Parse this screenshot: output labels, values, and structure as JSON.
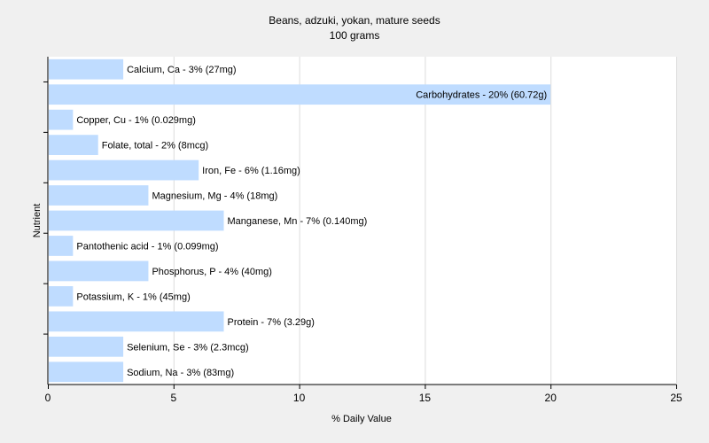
{
  "chart_data": {
    "type": "bar",
    "orientation": "horizontal",
    "title": "Beans, adzuki, yokan, mature seeds",
    "subtitle": "100 grams",
    "xlabel": "% Daily Value",
    "ylabel": "Nutrient",
    "xlim": [
      0,
      25
    ],
    "xticks": [
      0,
      5,
      10,
      15,
      20,
      25
    ],
    "grid": "vertical",
    "bar_color": "#bfdcff",
    "categories": [
      "Calcium, Ca",
      "Carbohydrates",
      "Copper, Cu",
      "Folate, total",
      "Iron, Fe",
      "Magnesium, Mg",
      "Manganese, Mn",
      "Pantothenic acid",
      "Phosphorus, P",
      "Potassium, K",
      "Protein",
      "Selenium, Se",
      "Sodium, Na"
    ],
    "values": [
      3,
      20,
      1,
      2,
      6,
      4,
      7,
      1,
      4,
      1,
      7,
      3,
      3
    ],
    "labels": [
      "Calcium, Ca - 3% (27mg)",
      "Carbohydrates - 20% (60.72g)",
      "Copper, Cu - 1% (0.029mg)",
      "Folate, total - 2% (8mcg)",
      "Iron, Fe - 6% (1.16mg)",
      "Magnesium, Mg - 4% (18mg)",
      "Manganese, Mn - 7% (0.140mg)",
      "Pantothenic acid - 1% (0.099mg)",
      "Phosphorus, P - 4% (40mg)",
      "Potassium, K - 1% (45mg)",
      "Protein - 7% (3.29g)",
      "Selenium, Se - 3% (2.3mcg)",
      "Sodium, Na - 3% (83mg)"
    ]
  }
}
